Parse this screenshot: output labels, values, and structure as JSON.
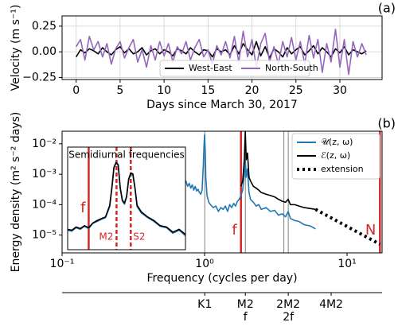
{
  "chart_data": [
    {
      "type": "line",
      "title": "(a)",
      "xlabel": "Days since March 30, 2017",
      "ylabel": "Velocity (m s⁻¹)",
      "x": [
        0,
        0.5,
        1,
        1.5,
        2,
        2.5,
        3,
        3.5,
        4,
        4.5,
        5,
        5.5,
        6,
        6.5,
        7,
        7.5,
        8,
        8.5,
        9,
        9.5,
        10,
        10.5,
        11,
        11.5,
        12,
        12.5,
        13,
        13.5,
        14,
        14.5,
        15,
        15.5,
        16,
        16.5,
        17,
        17.5,
        18,
        18.5,
        19,
        19.5,
        20,
        20.5,
        21,
        21.5,
        22,
        22.5,
        23,
        23.5,
        24,
        24.5,
        25,
        25.5,
        26,
        26.5,
        27,
        27.5,
        28,
        28.5,
        29,
        29.5,
        30,
        30.5,
        31,
        31.5,
        32,
        32.5,
        33
      ],
      "series": [
        {
          "name": "West-East",
          "color": "#000000",
          "values": [
            -0.05,
            0.02,
            -0.01,
            0.03,
            0.01,
            -0.02,
            0.04,
            0.0,
            -0.03,
            0.02,
            0.05,
            -0.01,
            0.03,
            -0.02,
            0.0,
            0.04,
            -0.03,
            0.01,
            0.03,
            -0.02,
            0.02,
            0.0,
            -0.04,
            0.03,
            0.01,
            -0.02,
            0.04,
            0.0,
            -0.03,
            0.02,
            0.01,
            -0.05,
            0.03,
            0.0,
            0.02,
            -0.03,
            0.06,
            -0.02,
            0.08,
            0.02,
            -0.03,
            0.1,
            -0.04,
            0.05,
            -0.06,
            0.03,
            0.0,
            -0.05,
            0.04,
            -0.02,
            0.02,
            0.05,
            -0.03,
            0.01,
            0.06,
            -0.02,
            0.04,
            0.0,
            -0.05,
            0.03,
            -0.01,
            0.05,
            -0.03,
            0.02,
            0.0,
            -0.02,
            0.01
          ]
        },
        {
          "name": "North-South",
          "color": "#9467bd",
          "values": [
            0.05,
            0.12,
            -0.08,
            0.15,
            0.02,
            0.1,
            -0.05,
            0.08,
            -0.12,
            0.03,
            0.1,
            -0.06,
            0.04,
            0.12,
            -0.1,
            0.02,
            -0.15,
            0.06,
            -0.08,
            0.1,
            -0.04,
            0.08,
            -0.1,
            0.05,
            -0.02,
            0.1,
            -0.08,
            0.04,
            0.12,
            -0.05,
            0.02,
            -0.12,
            0.06,
            -0.03,
            0.1,
            -0.06,
            0.15,
            -0.1,
            0.2,
            -0.05,
            0.12,
            -0.15,
            0.08,
            0.18,
            -0.1,
            0.05,
            -0.12,
            0.1,
            -0.05,
            0.14,
            -0.08,
            0.1,
            -0.12,
            0.16,
            -0.06,
            0.12,
            -0.2,
            0.08,
            -0.1,
            0.22,
            -0.15,
            0.12,
            -0.22,
            0.1,
            -0.05,
            0.08,
            -0.03
          ]
        }
      ],
      "xlim": [
        -1.6,
        34.8
      ],
      "ylim": [
        -0.27,
        0.35
      ],
      "xticks": [
        0,
        5,
        10,
        15,
        20,
        25,
        30
      ],
      "yticks": [
        {
          "value": -0.25,
          "label": "−0.25"
        },
        {
          "value": 0,
          "label": "0.00"
        },
        {
          "value": 0.25,
          "label": "0.25"
        }
      ],
      "grid": true,
      "legend": "lower center"
    },
    {
      "type": "line",
      "title": "(b)",
      "xlabel": "Frequency (cycles per day)",
      "ylabel": "Energy density (m² s⁻² days)",
      "xlog": true,
      "ylog": true,
      "xlim": [
        0.1,
        17.6
      ],
      "ylim": [
        2.6e-06,
        0.026
      ],
      "xticks": [
        {
          "value": 0.1,
          "label": "10⁻¹"
        },
        {
          "value": 1,
          "label": "10⁰"
        },
        {
          "value": 10,
          "label": "10¹"
        }
      ],
      "yticks": [
        {
          "value": 1e-05,
          "label": "10⁻⁵"
        },
        {
          "value": 0.0001,
          "label": "10⁻⁴"
        },
        {
          "value": 0.001,
          "label": "10⁻³"
        },
        {
          "value": 0.01,
          "label": "10⁻²"
        }
      ],
      "legend": "upper right",
      "series": [
        {
          "name": "𝒰(z, ω)",
          "color": "#1f77b4",
          "x": [
            0.7,
            0.72,
            0.74,
            0.76,
            0.78,
            0.8,
            0.82,
            0.84,
            0.86,
            0.88,
            0.9,
            0.92,
            0.94,
            0.96,
            0.98,
            0.99,
            1.0,
            1.01,
            1.02,
            1.04,
            1.07,
            1.1,
            1.15,
            1.2,
            1.25,
            1.3,
            1.35,
            1.4,
            1.45,
            1.5,
            1.55,
            1.6,
            1.65,
            1.7,
            1.75,
            1.8,
            1.85,
            1.9,
            1.93,
            1.96,
            2.0,
            2.05,
            2.1,
            2.2,
            2.3,
            2.4,
            2.5,
            2.7,
            2.9,
            3.1,
            3.3,
            3.5,
            3.7,
            3.86,
            4.0,
            4.3,
            4.6,
            5.0,
            5.5,
            6.0
          ],
          "values": [
            0.00055,
            0.00045,
            0.0006,
            0.0004,
            0.0005,
            0.00035,
            0.00045,
            0.0003,
            0.0004,
            0.00028,
            0.00032,
            0.00025,
            0.00022,
            0.0003,
            0.002,
            0.008,
            0.02,
            0.006,
            0.0008,
            0.0002,
            0.00012,
            0.0001,
            8e-05,
            9e-05,
            6e-05,
            8e-05,
            7e-05,
            9e-05,
            6e-05,
            0.0001,
            8e-05,
            0.00011,
            9e-05,
            0.00013,
            0.00015,
            0.0002,
            0.0003,
            0.001,
            0.003,
            0.0008,
            0.0015,
            0.00025,
            0.00015,
            0.00012,
            9e-05,
            0.0001,
            7e-05,
            8e-05,
            6e-05,
            6.5e-05,
            4.5e-05,
            5e-05,
            4e-05,
            6e-05,
            3.5e-05,
            3e-05,
            2.8e-05,
            2.2e-05,
            2e-05,
            1.6e-05
          ]
        },
        {
          "name": "ℰ(z, ω)",
          "color": "#000000",
          "x": [
            1.8,
            1.85,
            1.9,
            1.93,
            1.96,
            2.0,
            2.05,
            2.1,
            2.2,
            2.3,
            2.4,
            2.5,
            2.7,
            2.9,
            3.1,
            3.3,
            3.5,
            3.7,
            3.86,
            4.0,
            4.3,
            4.6,
            5.0,
            5.5,
            6.0
          ],
          "values": [
            0.0004,
            0.0006,
            0.003,
            0.025,
            0.003,
            0.005,
            0.0008,
            0.0006,
            0.0004,
            0.00035,
            0.0003,
            0.00025,
            0.00022,
            0.0002,
            0.00018,
            0.00015,
            0.00013,
            0.00012,
            0.00015,
            0.0001,
            0.0001,
            9e-05,
            8e-05,
            7.5e-05,
            7e-05
          ]
        },
        {
          "name": "extension",
          "color": "#000000",
          "dash": "dotted",
          "x": [
            6,
            17
          ],
          "values": [
            7e-05,
            5e-06
          ]
        }
      ],
      "vlines": [
        {
          "value": 1.0027,
          "color": "#808080"
        },
        {
          "value": 1.9323,
          "color": "#808080"
        },
        {
          "value": 3.6,
          "color": "#808080"
        },
        {
          "value": 3.8646,
          "color": "#808080"
        },
        {
          "value": 1.8,
          "color": "#d62728",
          "label": "f"
        },
        {
          "value": 17,
          "color": "#d62728",
          "label": "N"
        }
      ],
      "inset": {
        "title": "Semidiurnal frequencies",
        "xlim": [
          1.7,
          2.26
        ],
        "ylim": [
          3e-06,
          0.01
        ],
        "ylog": true,
        "x": [
          1.7,
          1.72,
          1.74,
          1.76,
          1.78,
          1.8,
          1.82,
          1.84,
          1.86,
          1.88,
          1.9,
          1.91,
          1.92,
          1.93,
          1.94,
          1.95,
          1.96,
          1.97,
          1.98,
          1.99,
          2.0,
          2.01,
          2.02,
          2.03,
          2.05,
          2.08,
          2.11,
          2.14,
          2.17,
          2.2,
          2.23,
          2.26
        ],
        "series": [
          {
            "color": "#1f77b4",
            "values": [
              1.4e-05,
              1.3e-05,
              1.7e-05,
              1.5e-05,
              1.9e-05,
              1.6e-05,
              2.4e-05,
              2.8e-05,
              3.3e-05,
              3.8e-05,
              9e-05,
              0.00038,
              0.0019,
              0.0028,
              0.0024,
              0.00038,
              0.00014,
              0.00011,
              0.00019,
              0.00075,
              0.0012,
              0.0011,
              0.00038,
              9e-05,
              5.5e-05,
              3.8e-05,
              2.8e-05,
              1.9e-05,
              1.7e-05,
              1.1e-05,
              1.4e-05,
              9e-06
            ]
          },
          {
            "color": "#000000",
            "values": [
              1.5e-05,
              1.4e-05,
              1.8e-05,
              1.6e-05,
              2e-05,
              1.7e-05,
              2.5e-05,
              3e-05,
              3.5e-05,
              4e-05,
              0.0001,
              0.0004,
              0.002,
              0.003,
              0.0025,
              0.0004,
              0.00015,
              0.00012,
              0.0002,
              0.0008,
              0.0013,
              0.0012,
              0.0004,
              0.0001,
              6e-05,
              4e-05,
              3e-05,
              2e-05,
              1.8e-05,
              1.2e-05,
              1.5e-05,
              1e-05
            ]
          }
        ],
        "vlines": [
          {
            "value": 1.8,
            "color": "#d62728",
            "label": "f",
            "dash": "solid"
          },
          {
            "value": 1.9323,
            "color": "#d62728",
            "label": "M2",
            "dash": "dashed"
          },
          {
            "value": 2.0,
            "color": "#d62728",
            "label": "S2",
            "dash": "dashed"
          }
        ]
      },
      "tidal_axis": {
        "ticks": [
          {
            "value": 1.0027,
            "label": "K1"
          },
          {
            "value": 1.9323,
            "label": "M2"
          },
          {
            "value": 3.8646,
            "label": "2M2"
          },
          {
            "value": 7.7292,
            "label": "4M2"
          }
        ],
        "sub_labels": [
          {
            "value": 1.9323,
            "label": "f"
          },
          {
            "value": 3.8646,
            "label": "2f"
          }
        ]
      }
    }
  ]
}
